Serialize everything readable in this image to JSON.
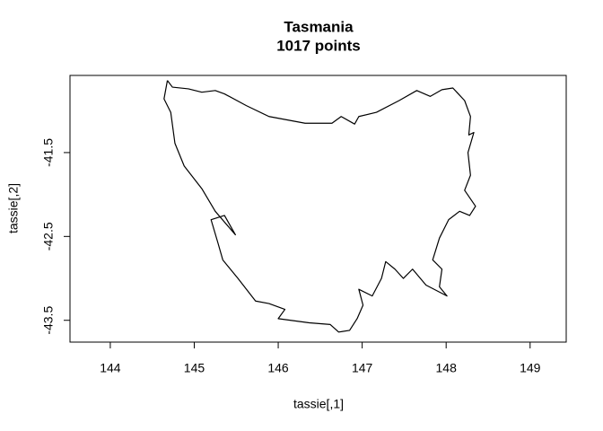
{
  "chart_data": {
    "type": "line",
    "title": "Tasmania",
    "subtitle": "1017 points",
    "xlabel": "tassie[,1]",
    "ylabel": "tassie[,2]",
    "xlim": [
      143.52,
      149.43
    ],
    "ylim": [
      -43.76,
      -40.58
    ],
    "xticks": [
      144,
      145,
      146,
      147,
      148,
      149
    ],
    "yticks": [
      -41.5,
      -42.5,
      -43.5
    ],
    "x": [
      144.68,
      144.74,
      144.93,
      145.09,
      145.25,
      145.36,
      145.62,
      145.89,
      146.32,
      146.64,
      146.75,
      146.91,
      146.96,
      147.17,
      147.44,
      147.65,
      147.81,
      147.95,
      148.08,
      148.22,
      148.29,
      148.27,
      148.33,
      148.26,
      148.29,
      148.22,
      148.35,
      148.28,
      148.16,
      148.03,
      147.92,
      147.84,
      147.95,
      147.92,
      148.01,
      147.76,
      147.6,
      147.49,
      147.39,
      147.28,
      147.23,
      147.12,
      146.96,
      147.01,
      146.94,
      146.85,
      146.72,
      146.62,
      146.37,
      146.0,
      146.08,
      145.89,
      145.73,
      145.52,
      145.34,
      145.28,
      145.2,
      145.36,
      145.49,
      145.25,
      145.09,
      144.88,
      144.77,
      144.72,
      144.64,
      144.68
    ],
    "series": [
      {
        "color": "#000000",
        "values": [
          -40.64,
          -40.72,
          -40.74,
          -40.78,
          -40.76,
          -40.8,
          -40.94,
          -41.07,
          -41.15,
          -41.15,
          -41.07,
          -41.16,
          -41.07,
          -41.02,
          -40.88,
          -40.76,
          -40.83,
          -40.75,
          -40.73,
          -40.88,
          -41.07,
          -41.29,
          -41.26,
          -41.5,
          -41.77,
          -41.95,
          -42.14,
          -42.25,
          -42.2,
          -42.3,
          -42.52,
          -42.78,
          -42.89,
          -43.1,
          -43.21,
          -43.08,
          -42.89,
          -43.0,
          -42.89,
          -42.8,
          -43.0,
          -43.21,
          -43.13,
          -43.32,
          -43.48,
          -43.62,
          -43.64,
          -43.55,
          -43.53,
          -43.48,
          -43.37,
          -43.3,
          -43.27,
          -43.0,
          -42.78,
          -42.57,
          -42.3,
          -42.25,
          -42.48,
          -42.2,
          -41.93,
          -41.66,
          -41.39,
          -41.02,
          -40.86,
          -40.64
        ]
      }
    ]
  }
}
